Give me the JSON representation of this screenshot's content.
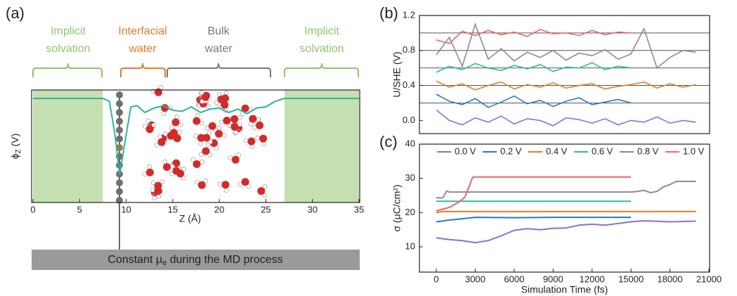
{
  "chart_data": [
    {
      "type": "line",
      "label": "(a)",
      "x_label": "Z (Å)",
      "y_label": {
        "symbol": "ϕ",
        "subscript": "Z",
        "unit": " (V)"
      },
      "xlim": [
        0,
        35
      ],
      "ylim": [
        0,
        1
      ],
      "xticks": [
        0,
        5,
        10,
        15,
        20,
        25,
        30,
        35
      ],
      "shaded_regions": [
        [
          0,
          7.5
        ],
        [
          27,
          35
        ]
      ],
      "region_color": "#c5e0b0",
      "series": [
        {
          "color": "#2ab3a0",
          "x": [
            0,
            7.5,
            8.2,
            8.8,
            9.3,
            9.8,
            10.5,
            11.2,
            12,
            13,
            14,
            15,
            16,
            17,
            18,
            19,
            20,
            21,
            22,
            23,
            24,
            25,
            26,
            27,
            35
          ],
          "values": [
            0.925,
            0.925,
            0.9,
            0.6,
            0.25,
            0.5,
            0.85,
            0.86,
            0.8,
            0.84,
            0.86,
            0.82,
            0.81,
            0.85,
            0.8,
            0.83,
            0.84,
            0.8,
            0.83,
            0.79,
            0.84,
            0.85,
            0.9,
            0.925,
            0.925
          ]
        }
      ],
      "annotations": [
        {
          "lines": [
            "Implicit",
            "solvation"
          ],
          "color": "#8fc46a"
        },
        {
          "lines": [
            "Interfacial",
            "water"
          ],
          "color": "#e8782a"
        },
        {
          "lines": [
            "Bulk",
            "water"
          ],
          "color": "#777777"
        },
        {
          "lines": [
            "Implicit",
            "solvation"
          ],
          "color": "#8fc46a"
        }
      ],
      "bottom_note": {
        "text": "Constant μ",
        "subscript": "e",
        "rest": "  during the MD process"
      }
    },
    {
      "type": "line",
      "label": "(b)",
      "y_label": "U/SHE (V)",
      "xlim": [
        -1300,
        21000
      ],
      "ylim": [
        -0.15,
        1.2
      ],
      "yticks": [
        {
          "value": 0,
          "label": "0.0"
        },
        0.4,
        0.8,
        1.2
      ],
      "reference_lines": [
        0.2,
        0.4,
        0.6,
        0.8,
        1.0
      ],
      "series": [
        {
          "color": "#8a70d2",
          "x": [
            0,
            1000,
            2000,
            3000,
            4000,
            5000,
            6000,
            7000,
            8000,
            9000,
            10000,
            11000,
            12000,
            13000,
            14000,
            15000,
            16000,
            17000,
            18000,
            19000,
            20000
          ],
          "values": [
            0.12,
            0.0,
            -0.05,
            0.03,
            -0.02,
            0.05,
            -0.04,
            0.02,
            0.0,
            -0.06,
            0.03,
            0.01,
            -0.03,
            0.02,
            -0.05,
            0.0,
            -0.02,
            0.04,
            -0.03,
            0.0,
            -0.02
          ]
        },
        {
          "color": "#2a7ab8",
          "x": [
            0,
            1000,
            2000,
            3000,
            4000,
            5000,
            6000,
            7000,
            8000,
            9000,
            10000,
            11000,
            12000,
            13000,
            14000,
            15000
          ],
          "values": [
            0.3,
            0.22,
            0.18,
            0.25,
            0.15,
            0.21,
            0.28,
            0.19,
            0.23,
            0.16,
            0.22,
            0.26,
            0.18,
            0.21,
            0.24,
            0.2
          ]
        },
        {
          "color": "#e67c28",
          "x": [
            0,
            1000,
            2000,
            3000,
            4000,
            5000,
            6000,
            7000,
            8000,
            9000,
            10000,
            11000,
            12000,
            13000,
            14000,
            15000,
            16000,
            17000,
            18000,
            19000,
            20000
          ],
          "values": [
            0.45,
            0.38,
            0.42,
            0.35,
            0.4,
            0.44,
            0.36,
            0.41,
            0.38,
            0.43,
            0.37,
            0.4,
            0.42,
            0.36,
            0.39,
            0.41,
            0.44,
            0.37,
            0.42,
            0.38,
            0.41
          ]
        },
        {
          "color": "#2ebca6",
          "x": [
            0,
            1000,
            2000,
            3000,
            4000,
            5000,
            6000,
            7000,
            8000,
            9000,
            10000,
            11000,
            12000,
            13000,
            14000,
            15000
          ],
          "values": [
            0.55,
            0.62,
            0.58,
            0.65,
            0.6,
            0.57,
            0.63,
            0.59,
            0.64,
            0.56,
            0.61,
            0.6,
            0.66,
            0.58,
            0.62,
            0.6
          ]
        },
        {
          "color": "#8c8c8c",
          "x": [
            0,
            1000,
            2000,
            3000,
            4000,
            5000,
            6000,
            7000,
            8000,
            9000,
            10000,
            11000,
            12000,
            13000,
            14000,
            15000,
            16000,
            17000,
            18000,
            19000,
            20000
          ],
          "values": [
            0.75,
            0.95,
            0.62,
            1.1,
            0.7,
            0.82,
            0.68,
            0.78,
            0.72,
            0.8,
            0.69,
            0.77,
            0.74,
            0.81,
            0.7,
            0.76,
            1.05,
            0.6,
            0.72,
            0.8,
            0.78
          ]
        },
        {
          "color": "#f06464",
          "x": [
            0,
            1000,
            2000,
            3000,
            4000,
            5000,
            6000,
            7000,
            8000,
            9000,
            10000,
            11000,
            12000,
            13000,
            14000,
            15000
          ],
          "values": [
            0.92,
            0.88,
            1.02,
            0.97,
            1.03,
            0.98,
            1.01,
            0.96,
            1.04,
            0.99,
            1.0,
            0.97,
            1.03,
            0.98,
            1.01,
            1.0
          ]
        }
      ]
    },
    {
      "type": "line",
      "label": "(c)",
      "x_label": "Simulation Time (fs)",
      "y_label": "σ (μC/cm²)",
      "xlim": [
        -1300,
        21000
      ],
      "ylim": [
        2.6,
        40
      ],
      "xticks": [
        0,
        3000,
        6000,
        9000,
        12000,
        15000,
        18000,
        21000
      ],
      "yticks": [
        10,
        20,
        30,
        40
      ],
      "legend": "top",
      "series": [
        {
          "name": "0.0 V",
          "color": "#8a70d2",
          "x": [
            0,
            1000,
            2000,
            3000,
            4000,
            5000,
            6000,
            7000,
            8000,
            9000,
            10000,
            11000,
            12000,
            13000,
            14000,
            15000,
            16000,
            18000,
            20000
          ],
          "values": [
            12.6,
            12.1,
            11.8,
            11.2,
            11.8,
            13.2,
            14.8,
            15.3,
            15.0,
            15.4,
            15.5,
            16.3,
            16.6,
            16.3,
            16.8,
            17.3,
            17.6,
            17.3,
            17.5
          ]
        },
        {
          "name": "0.2 V",
          "color": "#2a7ab8",
          "x": [
            0,
            1000,
            2000,
            3000,
            6000,
            9000,
            12000,
            15000
          ],
          "values": [
            17.3,
            17.8,
            18.2,
            18.6,
            18.5,
            18.6,
            18.6,
            18.6
          ]
        },
        {
          "name": "0.4 V",
          "color": "#e67c28",
          "x": [
            0,
            500,
            20000
          ],
          "values": [
            20.0,
            20.3,
            20.3
          ]
        },
        {
          "name": "0.6 V",
          "color": "#2ebca6",
          "x": [
            0,
            15000
          ],
          "values": [
            23.3,
            23.3
          ]
        },
        {
          "name": "0.8 V",
          "color": "#8c8c8c",
          "x": [
            0,
            500,
            800,
            1000,
            15000,
            15500,
            16000,
            16500,
            17000,
            17500,
            18000,
            18500,
            20000
          ],
          "values": [
            24.3,
            24.3,
            26.3,
            26.0,
            26.0,
            26.2,
            26.5,
            25.8,
            26.2,
            27.5,
            28.2,
            29.1,
            29.1
          ]
        },
        {
          "name": "1.0 V",
          "color": "#f06464",
          "x": [
            0,
            1000,
            1800,
            2200,
            2800,
            3000,
            15000
          ],
          "values": [
            20.5,
            21.5,
            23.2,
            24.5,
            30.3,
            30.4,
            30.4
          ]
        }
      ]
    }
  ]
}
